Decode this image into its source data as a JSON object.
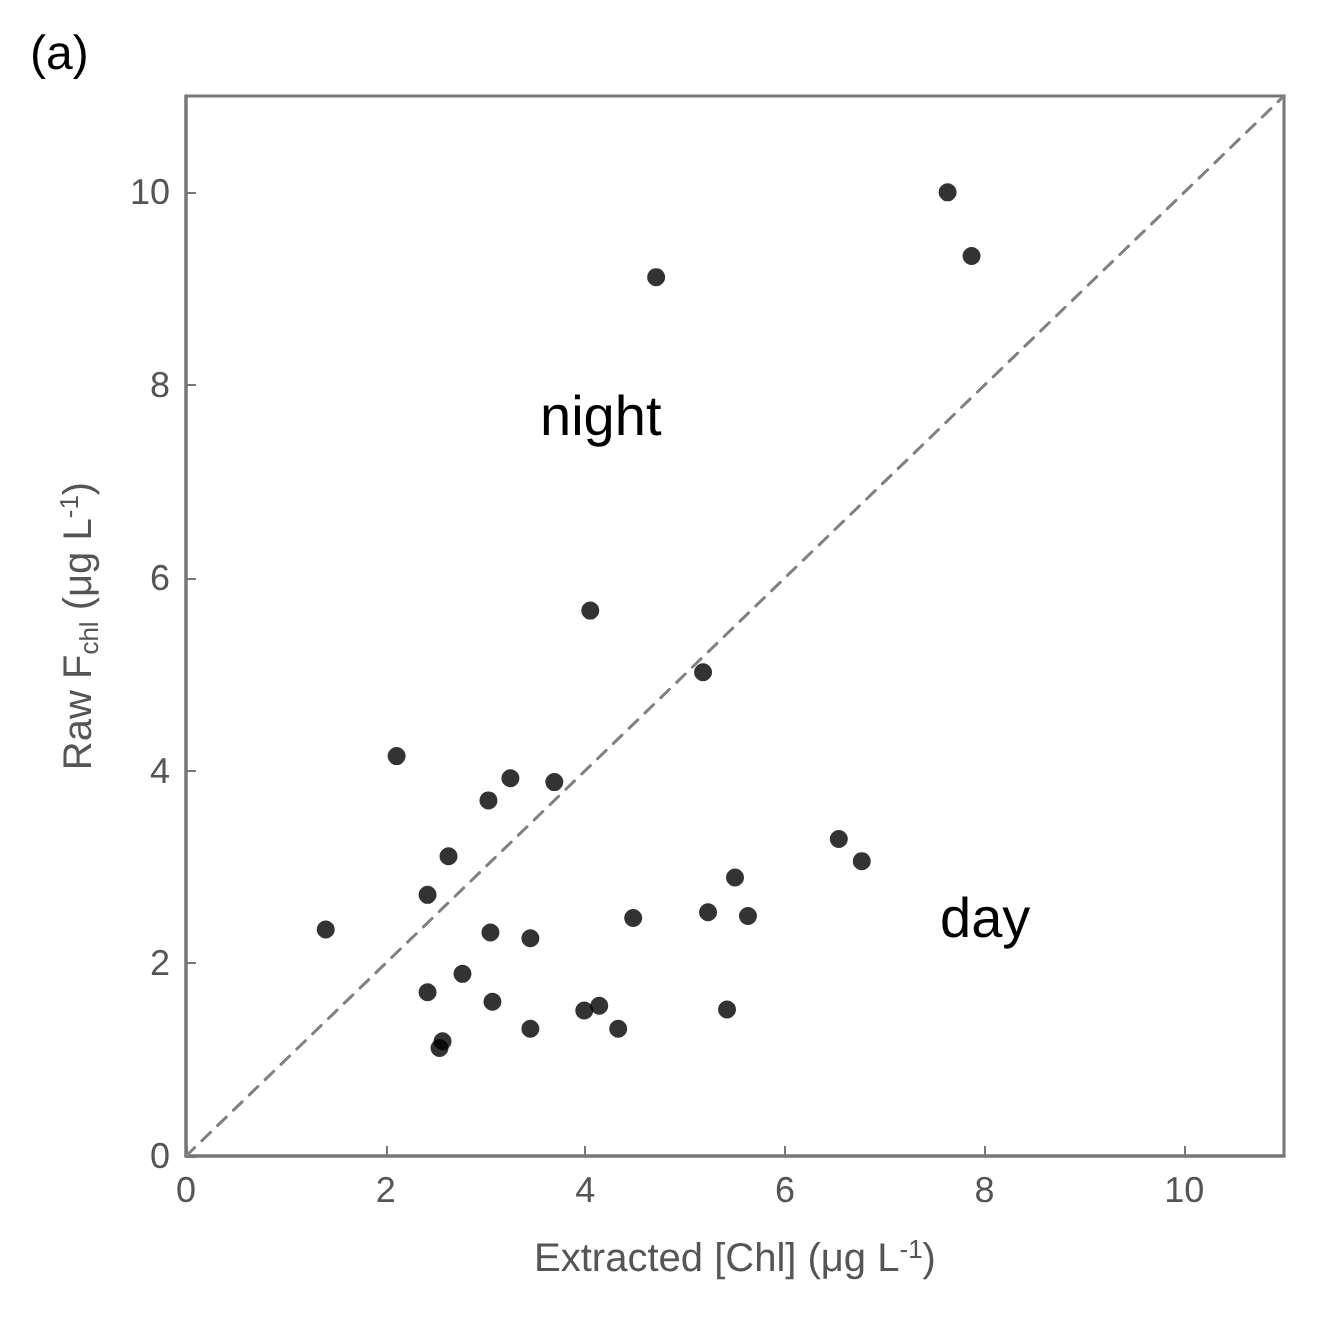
{
  "chart_data": {
    "type": "scatter",
    "title": "(a)",
    "xlabel": "Extracted [Chl] (μg L$^{-1}$)",
    "ylabel": "Raw F$_{chl}$ (μg L$^{-1}$)",
    "xlim": [
      0,
      11
    ],
    "ylim": [
      0,
      11
    ],
    "xticks": [
      0,
      2,
      4,
      6,
      8,
      10
    ],
    "yticks": [
      0,
      2,
      4,
      6,
      8,
      10
    ],
    "grid": false,
    "marker": "circle",
    "annotations": [
      "night",
      "day"
    ],
    "series": [
      {
        "color": "#000000",
        "x": [
          5.18,
          2.11,
          3.25,
          3.69,
          3.03,
          2.63,
          2.42,
          1.4,
          5.5,
          5.23,
          5.63,
          4.48,
          3.05,
          3.45,
          2.77,
          2.42,
          3.07,
          3.99,
          4.14,
          5.42,
          3.45,
          4.33,
          2.57,
          2.54,
          7.63,
          7.87,
          6.54,
          6.77,
          4.71,
          4.05
        ],
        "values": [
          5.02,
          4.15,
          3.92,
          3.88,
          3.69,
          3.11,
          2.71,
          2.35,
          2.89,
          2.53,
          2.49,
          2.47,
          2.32,
          2.26,
          1.89,
          1.7,
          1.6,
          1.51,
          1.56,
          1.52,
          1.32,
          1.32,
          1.19,
          1.12,
          10.0,
          9.34,
          3.29,
          3.06,
          9.12,
          5.66
        ]
      },
      {
        "type": "line",
        "color": "#808080",
        "line_style": "dashed",
        "marker": "none",
        "x": [
          0,
          11
        ],
        "values": [
          0,
          11
        ]
      }
    ]
  }
}
